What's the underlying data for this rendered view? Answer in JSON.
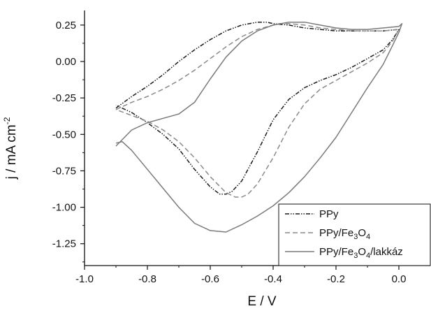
{
  "chart_data": {
    "type": "line",
    "title": "",
    "xlabel": "E / V",
    "ylabel": "j / mA cm",
    "ylabel_superscript": "-2",
    "xlim": [
      -1.0,
      0.1
    ],
    "ylim": [
      -1.4,
      0.35
    ],
    "x_ticks": [
      -1.0,
      -0.8,
      -0.6,
      -0.4,
      -0.2,
      0.0
    ],
    "x_tick_labels": [
      "-1.0",
      "-0.8",
      "-0.6",
      "-0.4",
      "-0.2",
      "0.0"
    ],
    "y_ticks": [
      0.25,
      0.0,
      -0.25,
      -0.5,
      -0.75,
      -1.0,
      -1.25
    ],
    "y_tick_labels": [
      "0.25",
      "0.00",
      "-0.25",
      "-0.50",
      "-0.75",
      "-1.00",
      "-1.25"
    ],
    "grid": false,
    "legend_position": "bottom-right",
    "series": [
      {
        "name": "PPy",
        "legend_parts": [
          "PPy"
        ],
        "color": "#1a1a1a",
        "dash": "dash-dot-dot",
        "x": [
          -0.9,
          -0.85,
          -0.8,
          -0.75,
          -0.7,
          -0.65,
          -0.6,
          -0.55,
          -0.5,
          -0.45,
          -0.42,
          -0.4,
          -0.35,
          -0.3,
          -0.25,
          -0.2,
          -0.15,
          -0.1,
          -0.05,
          0.0,
          0.0,
          -0.02,
          -0.05,
          -0.1,
          -0.15,
          -0.2,
          -0.25,
          -0.3,
          -0.35,
          -0.4,
          -0.45,
          -0.5,
          -0.53,
          -0.55,
          -0.57,
          -0.6,
          -0.65,
          -0.7,
          -0.75,
          -0.8,
          -0.85,
          -0.9
        ],
        "y": [
          -0.32,
          -0.24,
          -0.17,
          -0.09,
          0.0,
          0.08,
          0.15,
          0.21,
          0.25,
          0.27,
          0.27,
          0.26,
          0.25,
          0.23,
          0.22,
          0.21,
          0.21,
          0.21,
          0.21,
          0.22,
          0.22,
          0.15,
          0.08,
          0.02,
          -0.04,
          -0.09,
          -0.13,
          -0.18,
          -0.26,
          -0.4,
          -0.62,
          -0.82,
          -0.89,
          -0.91,
          -0.91,
          -0.86,
          -0.74,
          -0.6,
          -0.5,
          -0.42,
          -0.35,
          -0.3
        ]
      },
      {
        "name": "PPy/Fe3O4",
        "legend_parts": [
          "PPy/Fe",
          "3",
          "O",
          "4"
        ],
        "color": "#8a8a8a",
        "dash": "dashed",
        "x": [
          -0.9,
          -0.85,
          -0.8,
          -0.75,
          -0.7,
          -0.65,
          -0.6,
          -0.55,
          -0.5,
          -0.45,
          -0.4,
          -0.38,
          -0.35,
          -0.3,
          -0.25,
          -0.2,
          -0.15,
          -0.1,
          -0.05,
          0.0,
          0.0,
          -0.02,
          -0.05,
          -0.1,
          -0.15,
          -0.2,
          -0.25,
          -0.3,
          -0.35,
          -0.4,
          -0.45,
          -0.48,
          -0.5,
          -0.52,
          -0.55,
          -0.6,
          -0.65,
          -0.7,
          -0.75,
          -0.8,
          -0.85,
          -0.9
        ],
        "y": [
          -0.33,
          -0.28,
          -0.24,
          -0.19,
          -0.13,
          -0.06,
          0.02,
          0.1,
          0.17,
          0.22,
          0.25,
          0.26,
          0.26,
          0.25,
          0.23,
          0.22,
          0.21,
          0.21,
          0.21,
          0.22,
          0.22,
          0.14,
          0.06,
          -0.01,
          -0.07,
          -0.13,
          -0.19,
          -0.29,
          -0.45,
          -0.66,
          -0.84,
          -0.91,
          -0.93,
          -0.93,
          -0.9,
          -0.79,
          -0.66,
          -0.55,
          -0.47,
          -0.41,
          -0.37,
          -0.33
        ]
      },
      {
        "name": "PPy/Fe3O4/lakkáz",
        "legend_parts": [
          "PPy/Fe",
          "3",
          "O",
          "4",
          "/lakkáz"
        ],
        "color": "#7a7a7a",
        "dash": "solid",
        "x": [
          -0.9,
          -0.85,
          -0.8,
          -0.75,
          -0.7,
          -0.65,
          -0.6,
          -0.55,
          -0.5,
          -0.45,
          -0.4,
          -0.35,
          -0.32,
          -0.3,
          -0.25,
          -0.2,
          -0.15,
          -0.1,
          -0.05,
          0.0,
          0.01,
          0.0,
          -0.02,
          -0.05,
          -0.1,
          -0.15,
          -0.2,
          -0.25,
          -0.3,
          -0.35,
          -0.4,
          -0.45,
          -0.5,
          -0.55,
          -0.6,
          -0.65,
          -0.7,
          -0.75,
          -0.8,
          -0.85,
          -0.88,
          -0.9
        ],
        "y": [
          -0.58,
          -0.47,
          -0.42,
          -0.39,
          -0.36,
          -0.28,
          -0.12,
          0.03,
          0.14,
          0.21,
          0.25,
          0.27,
          0.27,
          0.27,
          0.25,
          0.23,
          0.22,
          0.22,
          0.23,
          0.24,
          0.26,
          0.2,
          0.11,
          -0.02,
          -0.18,
          -0.35,
          -0.52,
          -0.66,
          -0.79,
          -0.9,
          -0.99,
          -1.06,
          -1.12,
          -1.17,
          -1.16,
          -1.11,
          -1.0,
          -0.87,
          -0.74,
          -0.61,
          -0.55,
          -0.56
        ]
      }
    ]
  }
}
